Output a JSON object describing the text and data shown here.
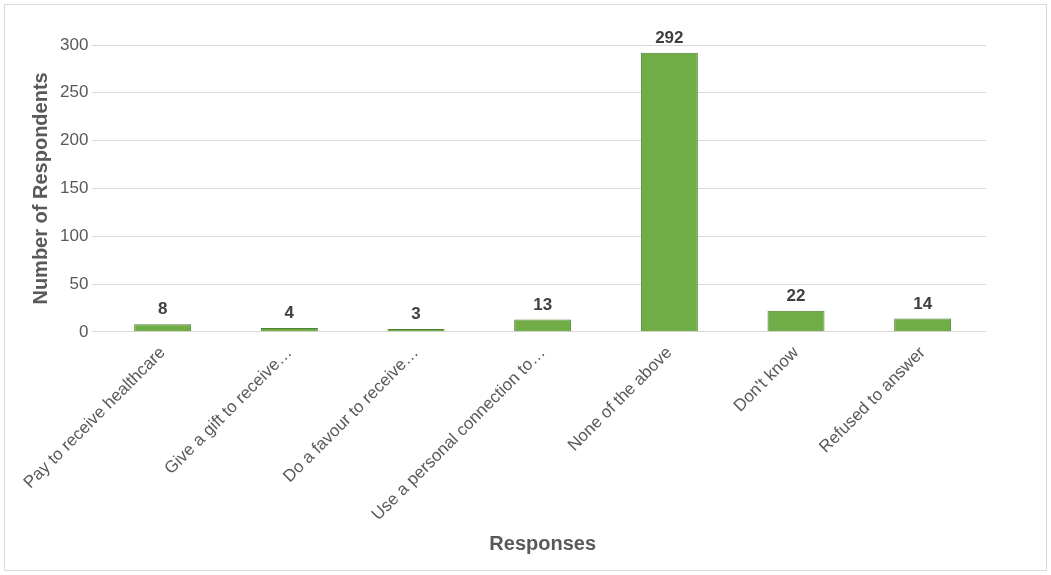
{
  "chart_data": {
    "type": "bar",
    "categories": [
      "Pay to receive healthcare",
      "Give a gift to receive…",
      "Do a favour to receive…",
      "Use a personal connection to…",
      "None of the above",
      "Don't know",
      "Refused to answer"
    ],
    "values": [
      8,
      4,
      3,
      13,
      292,
      22,
      14
    ],
    "color": "#70ad47",
    "xlabel": "Responses",
    "ylabel": "Number of Respondents",
    "ylim": [
      0,
      300
    ],
    "yticks": [
      0,
      50,
      100,
      150,
      200,
      250,
      300
    ],
    "grid": "y",
    "data_labels": true
  }
}
